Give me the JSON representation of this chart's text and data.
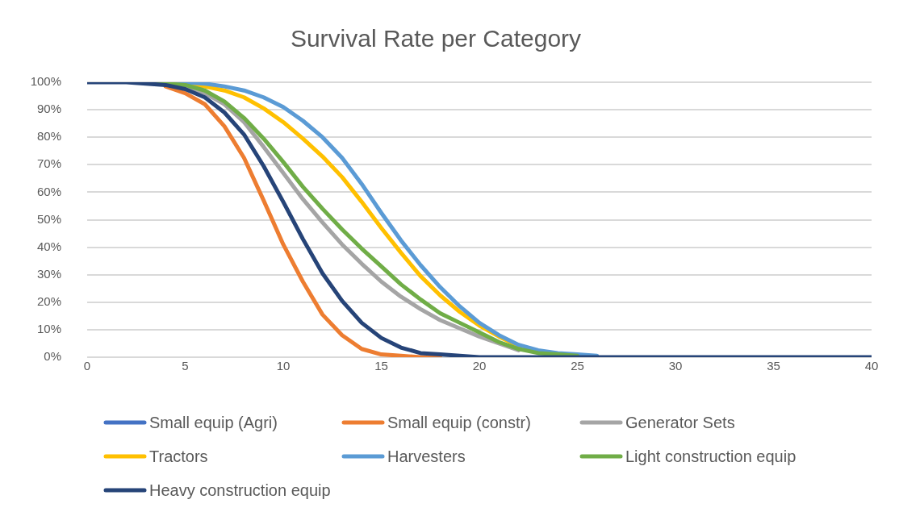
{
  "chart_data": {
    "type": "line",
    "title": "Survival Rate per Category",
    "x": [
      0,
      1,
      2,
      3,
      4,
      5,
      6,
      7,
      8,
      9,
      10,
      11,
      12,
      13,
      14,
      15,
      16,
      17,
      18,
      19,
      20,
      21,
      22,
      23,
      24,
      25,
      26,
      27,
      28,
      29,
      30,
      31,
      32,
      33,
      34,
      35,
      36,
      37,
      38,
      39,
      40
    ],
    "series": [
      {
        "name": "Small equip (Agri)",
        "color": "#4472c4",
        "values": [
          null,
          null,
          null,
          null,
          null,
          null,
          null,
          null,
          null,
          null,
          null,
          null,
          null,
          null,
          null,
          null,
          null,
          null,
          null,
          null,
          null,
          null,
          null,
          null,
          null,
          null,
          null,
          null,
          null,
          null,
          null,
          null,
          null,
          null,
          null,
          null,
          null,
          null,
          null,
          null,
          null
        ]
      },
      {
        "name": "Small equip (constr)",
        "color": "#ed7d31",
        "values": [
          null,
          null,
          null,
          null,
          98.5,
          96,
          92,
          84,
          72.5,
          57,
          41,
          27.5,
          15.5,
          8,
          3,
          1,
          0.5,
          0,
          0,
          null,
          null,
          null,
          null,
          null,
          null,
          null,
          null,
          null,
          null,
          null,
          null,
          null,
          null,
          null,
          null,
          null,
          null,
          null,
          null,
          null,
          null
        ]
      },
      {
        "name": "Generator Sets",
        "color": "#a5a5a5",
        "values": [
          null,
          null,
          null,
          null,
          null,
          98.5,
          96,
          92,
          85.5,
          76.5,
          67,
          57.5,
          49,
          41,
          34,
          27.5,
          22,
          17.5,
          13.5,
          10.5,
          7.5,
          5,
          2.5,
          null,
          null,
          null,
          null,
          null,
          null,
          null,
          null,
          null,
          null,
          null,
          null,
          null,
          null,
          null,
          null,
          null,
          null
        ]
      },
      {
        "name": "Tractors",
        "color": "#ffc000",
        "values": [
          null,
          null,
          null,
          null,
          null,
          99.5,
          98.5,
          97,
          94.5,
          90.5,
          85.5,
          79.5,
          73,
          65.5,
          56.5,
          47,
          38,
          29.5,
          22.5,
          16.5,
          11.5,
          7.5,
          4,
          null,
          null,
          null,
          null,
          null,
          null,
          null,
          null,
          null,
          null,
          null,
          null,
          null,
          null,
          null,
          null,
          null,
          null
        ]
      },
      {
        "name": "Harvesters",
        "color": "#5b9bd5",
        "values": [
          null,
          null,
          null,
          null,
          100,
          100,
          99.5,
          98.5,
          97,
          94.5,
          91,
          86,
          80,
          72.5,
          63,
          52.5,
          42.5,
          33.5,
          25.5,
          18.5,
          12.5,
          8,
          4.5,
          2.5,
          1.5,
          1,
          0.5,
          null,
          null,
          null,
          null,
          null,
          null,
          null,
          null,
          null,
          null,
          null,
          null,
          null,
          null
        ]
      },
      {
        "name": "Light construction equip",
        "color": "#70ad47",
        "values": [
          null,
          null,
          null,
          100,
          99.5,
          99,
          97,
          93,
          87,
          79.5,
          71,
          62,
          54,
          46.5,
          39.5,
          33,
          26.5,
          21,
          16,
          12.5,
          9,
          5.5,
          3,
          1.5,
          1,
          0.5,
          null,
          null,
          null,
          null,
          null,
          null,
          null,
          null,
          null,
          null,
          null,
          null,
          null,
          null,
          null
        ]
      },
      {
        "name": "Heavy construction equip",
        "color": "#264478",
        "values": [
          100,
          100,
          100,
          99.5,
          99,
          97.5,
          94.5,
          89,
          81,
          69.5,
          56.5,
          43,
          30.5,
          20.5,
          12.5,
          7,
          3.5,
          1.5,
          1,
          0.5,
          0,
          0,
          0,
          0,
          0,
          0,
          0,
          0,
          0,
          0,
          0,
          0,
          0,
          0,
          0,
          0,
          0,
          0,
          0,
          0,
          0
        ]
      }
    ],
    "xlim": [
      0,
      40
    ],
    "xticks": [
      0,
      5,
      10,
      15,
      20,
      25,
      30,
      35,
      40
    ],
    "ylim": [
      0,
      100
    ],
    "yticks": [
      {
        "value": 0,
        "label": "0%"
      },
      {
        "value": 10,
        "label": "10%"
      },
      {
        "value": 20,
        "label": "20%"
      },
      {
        "value": 30,
        "label": "30%"
      },
      {
        "value": 40,
        "label": "40%"
      },
      {
        "value": 50,
        "label": "50%"
      },
      {
        "value": 60,
        "label": "60%"
      },
      {
        "value": 70,
        "label": "70%"
      },
      {
        "value": 80,
        "label": "80%"
      },
      {
        "value": 90,
        "label": "90%"
      },
      {
        "value": 100,
        "label": "100%"
      }
    ],
    "grid": "y",
    "legend": "bottom"
  }
}
